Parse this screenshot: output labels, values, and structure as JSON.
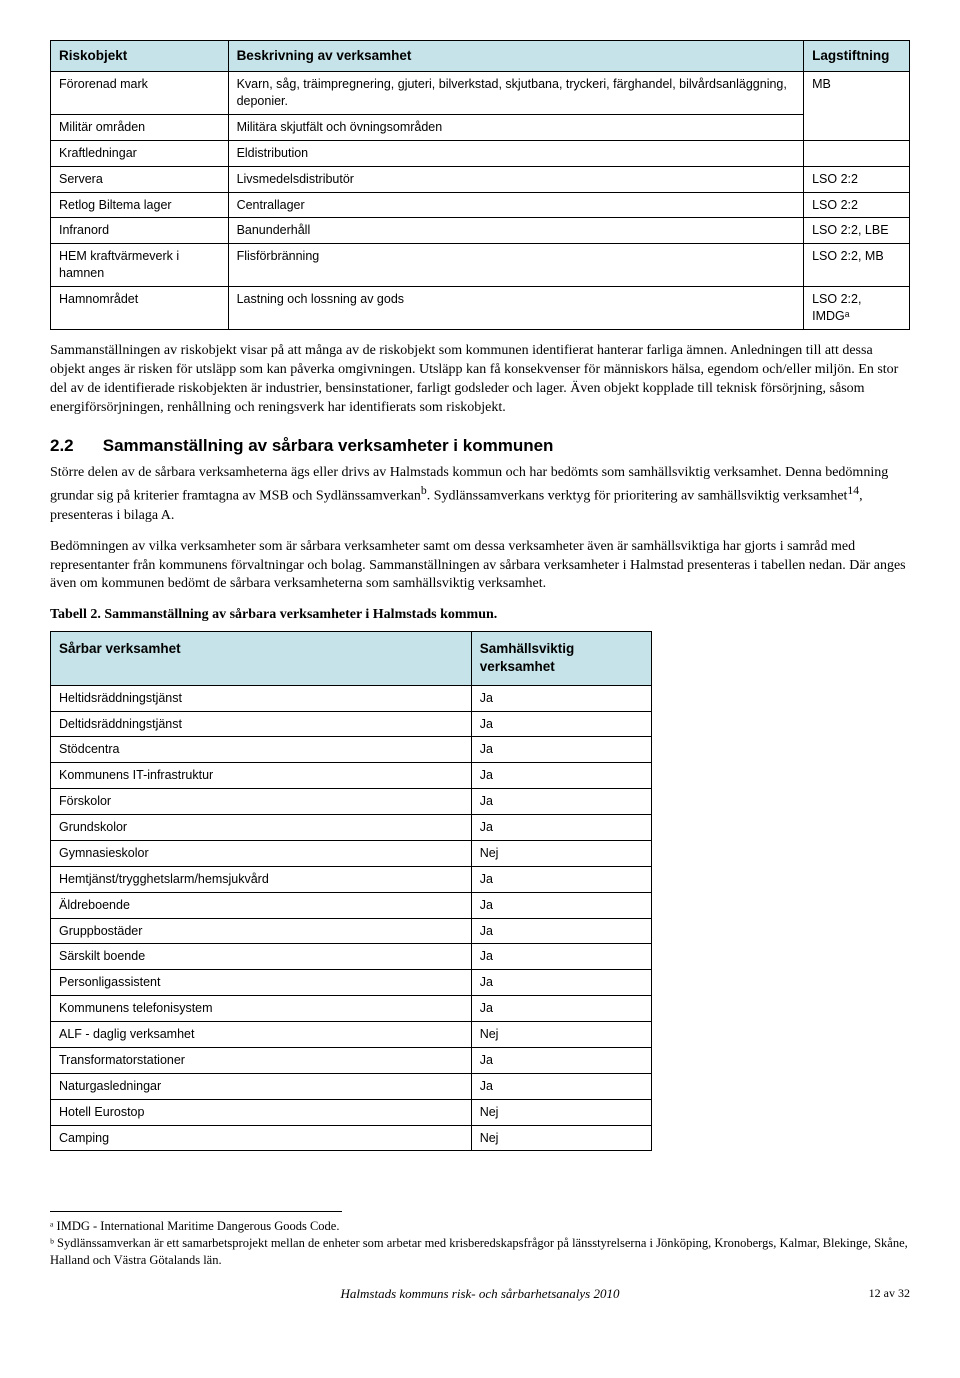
{
  "table1": {
    "headers": [
      "Riskobjekt",
      "Beskrivning av verksamhet",
      "Lagstiftning"
    ],
    "rows": [
      [
        "Förorenad mark",
        "Kvarn, såg, träimpregnering, gjuteri, bilverkstad, skjutbana, tryckeri, färghandel, bilvårdsanläggning, deponier.",
        "MB"
      ],
      [
        "Militär områden",
        "Militära skjutfält och övningsområden",
        ""
      ],
      [
        "Kraftledningar",
        "Eldistribution",
        ""
      ],
      [
        "Servera",
        "Livsmedelsdistributör",
        "LSO 2:2"
      ],
      [
        "Retlog Biltema lager",
        "Centrallager",
        "LSO 2:2"
      ],
      [
        "Infranord",
        "Banunderhåll",
        "LSO 2:2, LBE"
      ],
      [
        "HEM kraftvärmeverk i hamnen",
        "Flisförbränning",
        "LSO 2:2, MB"
      ],
      [
        "Hamnområdet",
        "Lastning och lossning av gods",
        "LSO 2:2, IMDGᵃ"
      ]
    ]
  },
  "para1": "Sammanställningen av riskobjekt visar på att många av de riskobjekt som kommunen identifierat hanterar farliga ämnen. Anledningen till att dessa objekt anges är risken för utsläpp som kan påverka omgivningen. Utsläpp kan få konsekvenser för människors hälsa, egendom och/eller miljön. En stor del av de identifierade riskobjekten är industrier, bensinstationer, farligt godsleder och lager. Även objekt kopplade till teknisk försörjning, såsom energiförsörjningen, renhållning och reningsverk har identifierats som riskobjekt.",
  "section": {
    "num": "2.2",
    "title": "Sammanställning av sårbara verksamheter i kommunen"
  },
  "para2a": "Större delen av de sårbara verksamheterna ägs eller drivs av Halmstads kommun och har bedömts som samhällsviktig verksamhet. Denna bedömning grundar sig på kriterier framtagna av MSB och Sydlänssamverkan",
  "para2b": ". Sydlänssamverkans verktyg för prioritering av samhällsviktig verksamhet",
  "para2c": ", presenteras i bilaga A.",
  "para3": "Bedömningen av vilka verksamheter som är sårbara verksamheter samt om dessa verksamheter även är samhällsviktiga har gjorts i samråd med representanter från kommunens förvaltningar och bolag. Sammanställningen av sårbara verksamheter i Halmstad presenteras i tabellen nedan. Där anges även om kommunen bedömt de sårbara verksamheterna som samhällsviktig verksamhet.",
  "table2caption": "Tabell 2. Sammanställning av sårbara verksamheter i Halmstads kommun.",
  "table2": {
    "headers": [
      "Sårbar verksamhet",
      "Samhällsviktig verksamhet"
    ],
    "rows": [
      [
        "Heltidsräddningstjänst",
        "Ja"
      ],
      [
        "Deltidsräddningstjänst",
        "Ja"
      ],
      [
        "Stödcentra",
        "Ja"
      ],
      [
        "Kommunens IT-infrastruktur",
        "Ja"
      ],
      [
        "Förskolor",
        "Ja"
      ],
      [
        "Grundskolor",
        "Ja"
      ],
      [
        "Gymnasieskolor",
        "Nej"
      ],
      [
        "Hemtjänst/trygghetslarm/hemsjukvård",
        "Ja"
      ],
      [
        "Äldreboende",
        "Ja"
      ],
      [
        "Gruppbostäder",
        "Ja"
      ],
      [
        "Särskilt boende",
        "Ja"
      ],
      [
        "Personligassistent",
        "Ja"
      ],
      [
        "Kommunens telefonisystem",
        "Ja"
      ],
      [
        "ALF - daglig verksamhet",
        "Nej"
      ],
      [
        "Transformatorstationer",
        "Ja"
      ],
      [
        "Naturgasledningar",
        "Ja"
      ],
      [
        "Hotell Eurostop",
        "Nej"
      ],
      [
        "Camping",
        "Nej"
      ]
    ]
  },
  "footnote_a": "ᵃ IMDG - International Maritime Dangerous Goods Code.",
  "footnote_b": "ᵇ Sydlänssamverkan är ett samarbetsprojekt mellan de enheter som arbetar med krisberedskapsfrågor på länsstyrelserna i Jönköping, Kronobergs, Kalmar, Blekinge, Skåne, Halland och Västra Götalands län.",
  "footer_title": "Halmstads kommuns risk- och sårbarhetsanalys 2010",
  "footer_page": "12 av 32"
}
